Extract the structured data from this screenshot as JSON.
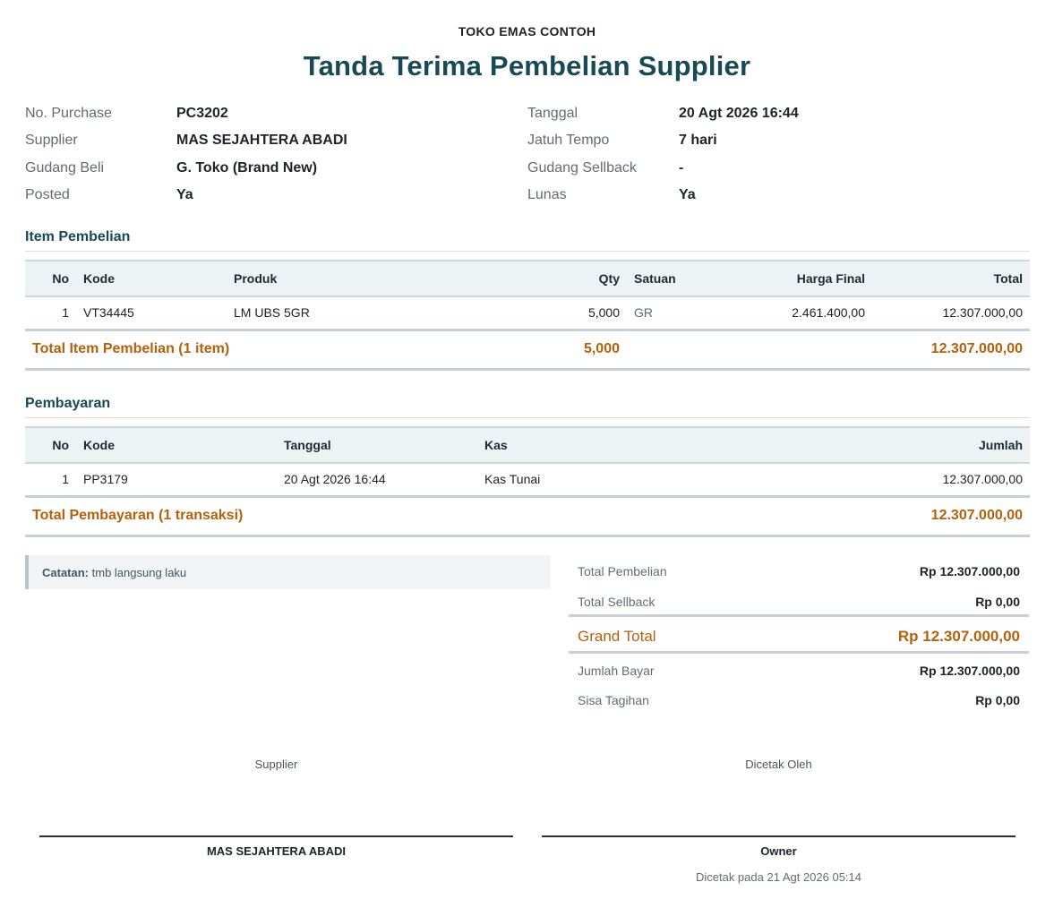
{
  "header": {
    "store_name": "TOKO EMAS CONTOH",
    "title": "Tanda Terima Pembelian Supplier"
  },
  "info": {
    "left": [
      {
        "label": "No. Purchase",
        "value": "PC3202"
      },
      {
        "label": "Supplier",
        "value": "MAS SEJAHTERA ABADI"
      },
      {
        "label": "Gudang Beli",
        "value": "G. Toko (Brand New)"
      },
      {
        "label": "Posted",
        "value": "Ya"
      }
    ],
    "right": [
      {
        "label": "Tanggal",
        "value": "20 Agt 2026 16:44"
      },
      {
        "label": "Jatuh Tempo",
        "value": "7 hari"
      },
      {
        "label": "Gudang Sellback",
        "value": "-"
      },
      {
        "label": "Lunas",
        "value": "Ya"
      }
    ]
  },
  "items_section": {
    "title": "Item Pembelian",
    "columns": {
      "no": "No",
      "kode": "Kode",
      "produk": "Produk",
      "qty": "Qty",
      "satuan": "Satuan",
      "harga": "Harga Final",
      "total": "Total"
    },
    "rows": [
      {
        "no": "1",
        "kode": "VT34445",
        "produk": "LM UBS 5GR",
        "qty": "5,000",
        "satuan": "GR",
        "harga": "2.461.400,00",
        "total": "12.307.000,00"
      }
    ],
    "total_label": "Total Item Pembelian (1 item)",
    "total_qty": "5,000",
    "total_amount": "12.307.000,00"
  },
  "payments_section": {
    "title": "Pembayaran",
    "columns": {
      "no": "No",
      "kode": "Kode",
      "tanggal": "Tanggal",
      "kas": "Kas",
      "jumlah": "Jumlah"
    },
    "rows": [
      {
        "no": "1",
        "kode": "PP3179",
        "tanggal": "20 Agt 2026 16:44",
        "kas": "Kas Tunai",
        "jumlah": "12.307.000,00"
      }
    ],
    "total_label": "Total Pembayaran (1 transaksi)",
    "total_amount": "12.307.000,00"
  },
  "note": {
    "label": "Catatan:",
    "text": "tmb langsung laku"
  },
  "summary": {
    "total_pembelian_label": "Total Pembelian",
    "total_pembelian_value": "Rp 12.307.000,00",
    "total_sellback_label": "Total Sellback",
    "total_sellback_value": "Rp 0,00",
    "grand_total_label": "Grand Total",
    "grand_total_value": "Rp 12.307.000,00",
    "jumlah_bayar_label": "Jumlah Bayar",
    "jumlah_bayar_value": "Rp 12.307.000,00",
    "sisa_tagihan_label": "Sisa Tagihan",
    "sisa_tagihan_value": "Rp 0,00"
  },
  "signatures": {
    "left_role": "Supplier",
    "left_name": "MAS SEJAHTERA ABADI",
    "right_role": "Dicetak Oleh",
    "right_name": "Owner",
    "printed_at": "Dicetak pada 21 Agt 2026 05:14"
  },
  "colors": {
    "title": "#174a54",
    "total_accent": "#b5610b",
    "header_bg": "#edf2f5"
  }
}
